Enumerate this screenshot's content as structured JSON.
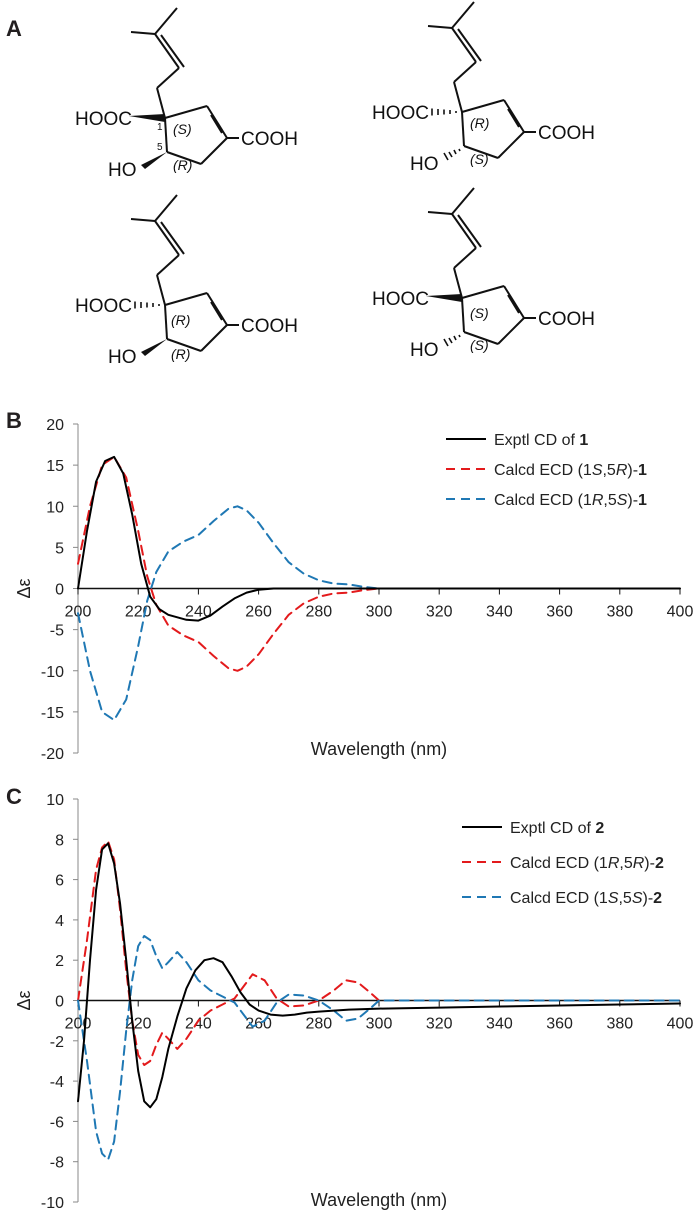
{
  "panels": {
    "A": "A",
    "B": "B",
    "C": "C"
  },
  "structures": [
    {
      "c1": "(S)",
      "c5": "(R)",
      "n1": "1",
      "n5": "5",
      "left_acid": "HOOC",
      "right_acid": "COOH",
      "hydroxyl": "HO"
    },
    {
      "c1": "(R)",
      "c5": "(S)",
      "n1": "",
      "n5": "",
      "left_acid": "HOOC",
      "right_acid": "COOH",
      "hydroxyl": "HO"
    },
    {
      "c1": "(R)",
      "c5": "(R)",
      "n1": "",
      "n5": "",
      "left_acid": "HOOC",
      "right_acid": "COOH",
      "hydroxyl": "HO"
    },
    {
      "c1": "(S)",
      "c5": "(S)",
      "n1": "",
      "n5": "",
      "left_acid": "HOOC",
      "right_acid": "COOH",
      "hydroxyl": "HO"
    }
  ],
  "chart_data": [
    {
      "type": "line",
      "xlabel": "Wavelength (nm)",
      "ylabel": "Δε",
      "xlim": [
        200,
        400
      ],
      "ylim": [
        -20,
        20
      ],
      "xticks": [
        200,
        220,
        240,
        260,
        280,
        300,
        320,
        340,
        360,
        380,
        400
      ],
      "yticks": [
        20,
        15,
        10,
        5,
        0,
        -5,
        -10,
        -15,
        -20
      ],
      "legend_position": "top-right",
      "series": [
        {
          "name": "Exptl CD of 1",
          "color": "#000000",
          "dash": "solid",
          "x": [
            200,
            203,
            206,
            209,
            212,
            215,
            218,
            221,
            224,
            227,
            230,
            233,
            236,
            240,
            244,
            248,
            252,
            256,
            260,
            265,
            270,
            280,
            300,
            400
          ],
          "y": [
            0,
            7,
            13,
            15.5,
            16,
            14,
            9,
            3,
            -1,
            -2.5,
            -3.2,
            -3.5,
            -3.8,
            -3.9,
            -3.3,
            -2.2,
            -1.2,
            -0.5,
            -0.15,
            0,
            0,
            0,
            0,
            0
          ]
        },
        {
          "name": "Calcd ECD (1S,5R)-1",
          "color": "#e31a1c",
          "dash": "dashed",
          "x": [
            200,
            204,
            208,
            212,
            216,
            220,
            223,
            226,
            230,
            235,
            240,
            245,
            250,
            253,
            256,
            260,
            265,
            270,
            275,
            280,
            285,
            290,
            295,
            300,
            310,
            400
          ],
          "y": [
            3,
            10,
            15,
            16,
            13.5,
            7,
            1.5,
            -2,
            -4.5,
            -5.7,
            -6.5,
            -8.2,
            -9.7,
            -10,
            -9.5,
            -8,
            -5.5,
            -3.2,
            -1.8,
            -1,
            -0.6,
            -0.5,
            -0.2,
            0,
            0,
            0
          ]
        },
        {
          "name": "Calcd ECD (1R,5S)-1",
          "color": "#1f78b4",
          "dash": "dashed",
          "x": [
            200,
            204,
            208,
            212,
            216,
            220,
            223,
            226,
            230,
            235,
            240,
            245,
            250,
            253,
            256,
            260,
            265,
            270,
            275,
            280,
            285,
            290,
            295,
            300,
            310,
            400
          ],
          "y": [
            -3,
            -10,
            -15,
            -16,
            -13.5,
            -7,
            -1.5,
            2,
            4.5,
            5.7,
            6.5,
            8.2,
            9.7,
            10,
            9.5,
            8,
            5.5,
            3.2,
            1.8,
            1,
            0.6,
            0.5,
            0.2,
            0,
            0,
            0
          ]
        }
      ]
    },
    {
      "type": "line",
      "xlabel": "Wavelength (nm)",
      "ylabel": "Δε",
      "xlim": [
        200,
        400
      ],
      "ylim": [
        -10,
        10
      ],
      "xticks": [
        200,
        220,
        240,
        260,
        280,
        300,
        320,
        340,
        360,
        380,
        400
      ],
      "yticks": [
        10,
        8,
        6,
        4,
        2,
        0,
        -2,
        -4,
        -6,
        -8,
        -10
      ],
      "legend_position": "top-right",
      "series": [
        {
          "name": "Exptl CD of 2",
          "color": "#000000",
          "dash": "solid",
          "x": [
            200,
            202,
            204,
            206,
            208,
            210,
            212,
            214,
            216,
            218,
            220,
            222,
            224,
            226,
            228,
            230,
            233,
            236,
            239,
            242,
            245,
            248,
            251,
            254,
            257,
            260,
            264,
            268,
            272,
            276,
            280,
            290,
            300,
            320,
            340,
            360,
            380,
            400
          ],
          "y": [
            -5,
            -2,
            2,
            5.5,
            7.5,
            7.8,
            6.8,
            4.8,
            2,
            -1,
            -3.5,
            -5,
            -5.3,
            -4.9,
            -3.8,
            -2.4,
            -0.8,
            0.6,
            1.5,
            2,
            2.1,
            1.9,
            1.2,
            0.4,
            -0.2,
            -0.5,
            -0.7,
            -0.75,
            -0.7,
            -0.6,
            -0.55,
            -0.45,
            -0.4,
            -0.35,
            -0.3,
            -0.25,
            -0.2,
            -0.15
          ]
        },
        {
          "name": "Calcd ECD (1R,5R)-2",
          "color": "#e31a1c",
          "dash": "dashed",
          "x": [
            200,
            203,
            206,
            208,
            210,
            212,
            214,
            216,
            218,
            220,
            222,
            224,
            226,
            228,
            230,
            233,
            236,
            240,
            244,
            248,
            252,
            256,
            258,
            262,
            266,
            270,
            275,
            280,
            285,
            289,
            293,
            297,
            300,
            310,
            400
          ],
          "y": [
            0,
            3,
            6.5,
            7.6,
            7.9,
            7,
            4.5,
            1.5,
            -1,
            -2.7,
            -3.2,
            -3,
            -2.2,
            -1.6,
            -1.9,
            -2.4,
            -1.9,
            -1,
            -0.5,
            -0.2,
            0.1,
            0.9,
            1.3,
            1,
            0.1,
            -0.3,
            -0.25,
            0,
            0.5,
            1,
            0.9,
            0.4,
            0,
            0,
            0
          ]
        },
        {
          "name": "Calcd ECD (1S,5S)-2",
          "color": "#1f78b4",
          "dash": "dashed",
          "x": [
            200,
            203,
            206,
            208,
            210,
            212,
            214,
            216,
            218,
            220,
            222,
            224,
            226,
            228,
            230,
            233,
            236,
            240,
            244,
            248,
            252,
            256,
            258,
            262,
            266,
            270,
            275,
            280,
            285,
            289,
            293,
            297,
            300,
            310,
            400
          ],
          "y": [
            0,
            -3,
            -6.5,
            -7.6,
            -7.9,
            -7,
            -4.5,
            -1.5,
            1,
            2.7,
            3.2,
            3,
            2.2,
            1.6,
            1.9,
            2.4,
            1.9,
            1,
            0.5,
            0.2,
            -0.1,
            -0.9,
            -1.3,
            -1,
            -0.1,
            0.3,
            0.25,
            0,
            -0.5,
            -1,
            -0.9,
            -0.4,
            0,
            0,
            0
          ]
        }
      ]
    }
  ]
}
